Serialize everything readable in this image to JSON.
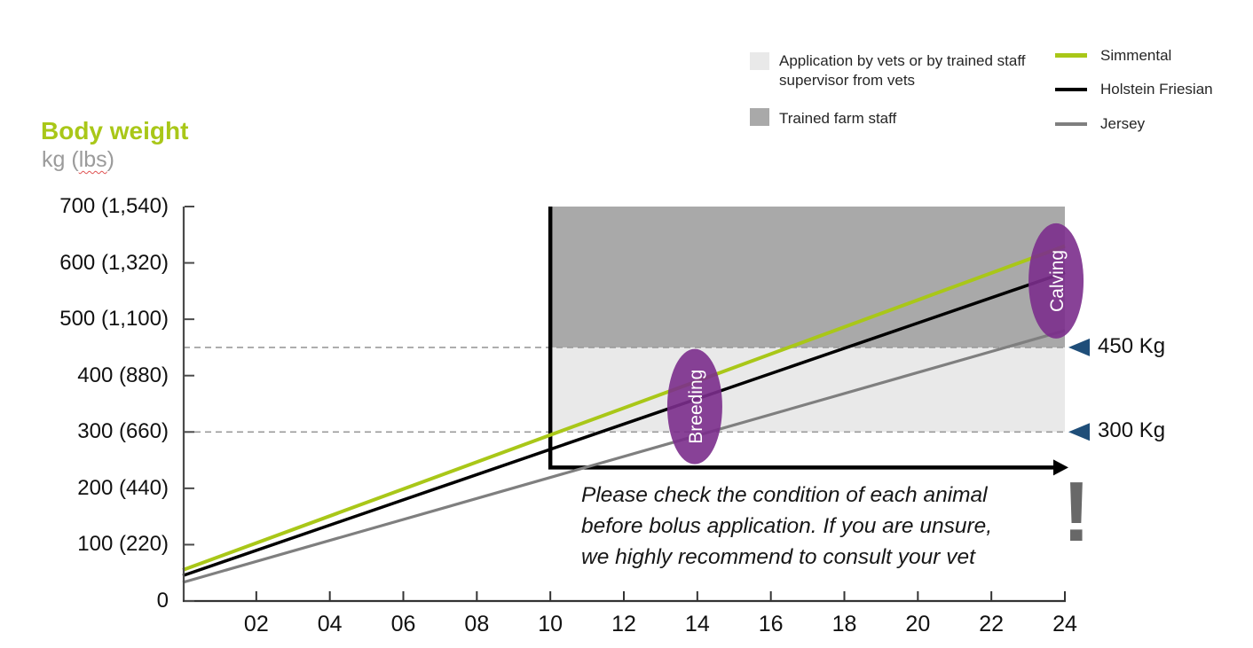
{
  "header": {
    "title": "Body weight",
    "unit_prefix": "kg (",
    "unit_lbs": "lbs",
    "unit_suffix": ")"
  },
  "legend": {
    "areas": [
      {
        "label": "Application by vets or by trained staff supervisor from vets",
        "color": "#e9e9e9"
      },
      {
        "label": "Trained farm staff",
        "color": "#a9a9a9"
      }
    ],
    "lines": [
      {
        "label": "Simmental",
        "color": "#a9c718"
      },
      {
        "label": "Holstein Friesian",
        "color": "#000000"
      },
      {
        "label": "Jersey",
        "color": "#7f7f7f"
      }
    ]
  },
  "chart_data": {
    "type": "line",
    "title": "Body weight",
    "ylabel": "kg (lbs)",
    "xlabel": "",
    "xlim": [
      0,
      24
    ],
    "ylim": [
      0,
      700
    ],
    "grid": false,
    "legend_position": "top-right",
    "x_tick_months": [
      2,
      4,
      6,
      8,
      10,
      12,
      14,
      16,
      18,
      20,
      22,
      24
    ],
    "x_tick_labels": [
      "02",
      "04",
      "06",
      "08",
      "10",
      "12",
      "14",
      "16",
      "18",
      "20",
      "22",
      "24"
    ],
    "y_ticks": [
      {
        "kg": 700,
        "label": "700 (1,540)"
      },
      {
        "kg": 600,
        "label": "600 (1,320)"
      },
      {
        "kg": 500,
        "label": "500 (1,100)"
      },
      {
        "kg": 400,
        "label": "400 (880)"
      },
      {
        "kg": 300,
        "label": "300 (660)"
      },
      {
        "kg": 200,
        "label": "200 (440)"
      },
      {
        "kg": 100,
        "label": "100 (220)"
      },
      {
        "kg": 0,
        "label": "0"
      }
    ],
    "series": [
      {
        "name": "Simmental",
        "color": "#a9c718",
        "width": 4,
        "points": [
          {
            "month": 0,
            "kg": 55
          },
          {
            "month": 24,
            "kg": 630
          }
        ]
      },
      {
        "name": "Holstein Friesian",
        "color": "#000000",
        "width": 3.5,
        "points": [
          {
            "month": 0,
            "kg": 45
          },
          {
            "month": 24,
            "kg": 583
          }
        ]
      },
      {
        "name": "Jersey",
        "color": "#7f7f7f",
        "width": 3.2,
        "points": [
          {
            "month": 0,
            "kg": 33
          },
          {
            "month": 24,
            "kg": 480
          }
        ]
      }
    ],
    "regions": [
      {
        "name": "vet-application",
        "label": "Application by vets or by trained staff supervisor from vets",
        "month_range": [
          10,
          24
        ],
        "kg_range": [
          300,
          450
        ],
        "color": "#e9e9e9"
      },
      {
        "name": "farm-staff",
        "label": "Trained farm staff",
        "month_range": [
          10,
          24
        ],
        "kg_range": [
          450,
          700
        ],
        "color": "#a9a9a9"
      }
    ],
    "thresholds": [
      {
        "kg": 450,
        "label": "450 Kg"
      },
      {
        "kg": 300,
        "label": "300 Kg"
      }
    ],
    "threshold_marker_color": "#1f4e79",
    "dashed_line_color": "#9b9b9b",
    "inner_axis": {
      "start_month": 10,
      "base_kg": 237,
      "top_kg": 700,
      "end_month": 24,
      "color": "#000000"
    },
    "annotations": [
      {
        "label": "Breeding",
        "month": 13.93,
        "kg": 345
      },
      {
        "label": "Calving",
        "month": 23.76,
        "kg": 568
      }
    ],
    "annotation_color": "#7b2d8c",
    "annotation_text_color": "#ffffff"
  },
  "note": {
    "lines": [
      "Please check the condition of each animal",
      "before bolus application. If you are unsure,",
      "we highly recommend to consult your vet"
    ],
    "exclamation": "!"
  }
}
